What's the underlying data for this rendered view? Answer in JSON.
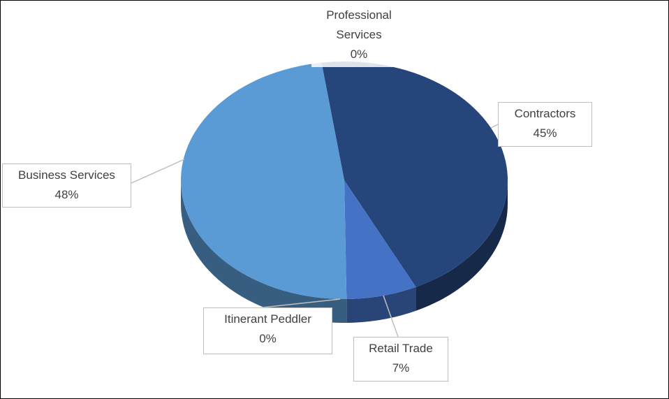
{
  "chart_data": {
    "type": "pie",
    "title": "",
    "slices": [
      {
        "label": "Professional Services",
        "value": 0,
        "percent_label": "0%",
        "color": "#26457a"
      },
      {
        "label": "Contractors",
        "value": 45,
        "percent_label": "45%",
        "color": "#26457a"
      },
      {
        "label": "Retail Trade",
        "value": 7,
        "percent_label": "7%",
        "color": "#4472c4"
      },
      {
        "label": "Itinerant Peddler",
        "value": 0,
        "percent_label": "0%",
        "color": "#4472c4"
      },
      {
        "label": "Business Services",
        "value": 48,
        "percent_label": "48%",
        "color": "#5b9bd5"
      }
    ],
    "style": "3d",
    "legend": "none"
  },
  "labels": {
    "professional_line1": "Professional",
    "professional_line2": "Services",
    "professional_pct": "0%",
    "contractors": "Contractors",
    "contractors_pct": "45%",
    "retail": "Retail Trade",
    "retail_pct": "7%",
    "itinerant": "Itinerant Peddler",
    "itinerant_pct": "0%",
    "business": "Business Services",
    "business_pct": "48%"
  }
}
